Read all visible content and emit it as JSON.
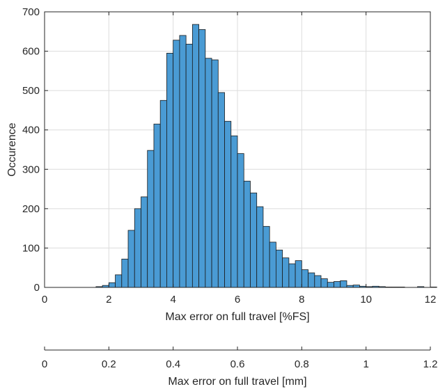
{
  "chart_data": {
    "type": "bar",
    "xlabel": "Max error on full travel [%FS]",
    "ylabel": "Occurence",
    "xlim": [
      0,
      12
    ],
    "ylim": [
      0,
      700
    ],
    "xticks": [
      "0",
      "2",
      "4",
      "6",
      "8",
      "10",
      "12"
    ],
    "yticks": [
      "0",
      "100",
      "200",
      "300",
      "400",
      "500",
      "600",
      "700"
    ],
    "grid": true,
    "bin_width": 0.2,
    "bin_start": 1.6,
    "values": [
      2,
      5,
      12,
      32,
      72,
      145,
      200,
      230,
      348,
      415,
      475,
      595,
      628,
      640,
      618,
      668,
      655,
      582,
      578,
      495,
      422,
      385,
      340,
      270,
      240,
      205,
      155,
      115,
      95,
      75,
      60,
      68,
      45,
      37,
      30,
      22,
      13,
      15,
      17,
      5,
      6,
      3,
      2,
      3,
      2,
      1,
      1,
      1,
      0,
      0,
      2,
      0,
      1
    ],
    "secondary_axis": {
      "xlabel": "Max error on full travel [mm]",
      "xlim": [
        0,
        1.2
      ],
      "xticks": [
        "0",
        "0.2",
        "0.4",
        "0.6",
        "0.8",
        "1",
        "1.2"
      ]
    },
    "colors": {
      "bar_fill": "#4a9bd4",
      "bar_edge": "#1a1a1a",
      "grid": "#dcdcdc",
      "axis": "#262626"
    }
  }
}
